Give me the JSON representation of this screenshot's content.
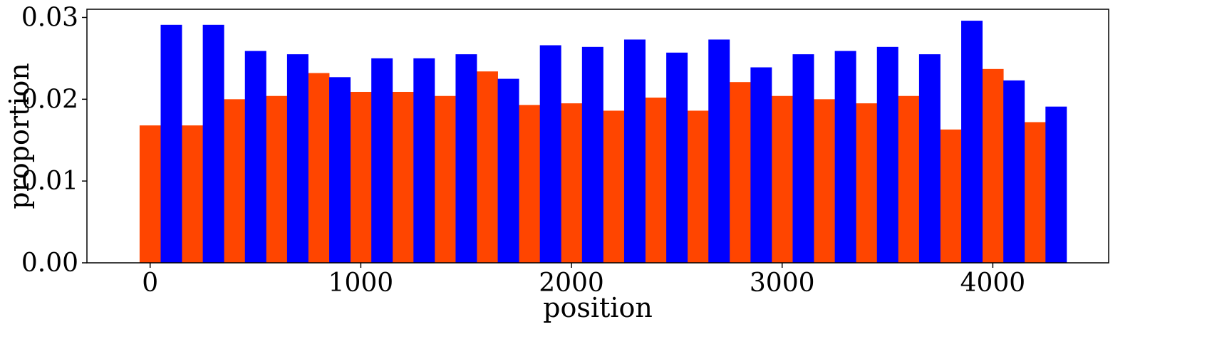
{
  "chart_data": {
    "type": "bar",
    "xlabel": "position",
    "ylabel": "proportion",
    "xlim": [
      -300,
      4550
    ],
    "ylim": [
      0,
      0.031
    ],
    "bin_width": 200,
    "x_ticks": [
      {
        "value": 0,
        "label": "0"
      },
      {
        "value": 1000,
        "label": "1000"
      },
      {
        "value": 2000,
        "label": "2000"
      },
      {
        "value": 3000,
        "label": "3000"
      },
      {
        "value": 4000,
        "label": "4000"
      }
    ],
    "y_ticks": [
      {
        "value": 0,
        "label": "0.00"
      },
      {
        "value": 0.01,
        "label": "0.01"
      },
      {
        "value": 0.02,
        "label": "0.02"
      },
      {
        "value": 0.03,
        "label": "0.03"
      }
    ],
    "bin_starts": [
      -50,
      150,
      350,
      550,
      750,
      950,
      1150,
      1350,
      1550,
      1750,
      1950,
      2150,
      2350,
      2550,
      2750,
      2950,
      3150,
      3350,
      3550,
      3750,
      3950,
      4150
    ],
    "series": [
      {
        "color": "#ff4500",
        "values": [
          0.0168,
          0.0168,
          0.02,
          0.0204,
          0.0232,
          0.0209,
          0.0209,
          0.0204,
          0.0234,
          0.0193,
          0.0195,
          0.0186,
          0.0202,
          0.0186,
          0.0221,
          0.0204,
          0.02,
          0.0195,
          0.0204,
          0.0163,
          0.0237,
          0.0172
        ]
      },
      {
        "color": "#0000ff",
        "values": [
          0.0291,
          0.0291,
          0.0259,
          0.0255,
          0.0227,
          0.025,
          0.025,
          0.0255,
          0.0225,
          0.0266,
          0.0264,
          0.0273,
          0.0257,
          0.0273,
          0.0239,
          0.0255,
          0.0259,
          0.0264,
          0.0255,
          0.0296,
          0.0223,
          0.0191
        ]
      }
    ],
    "grid": false,
    "legend": "none"
  }
}
